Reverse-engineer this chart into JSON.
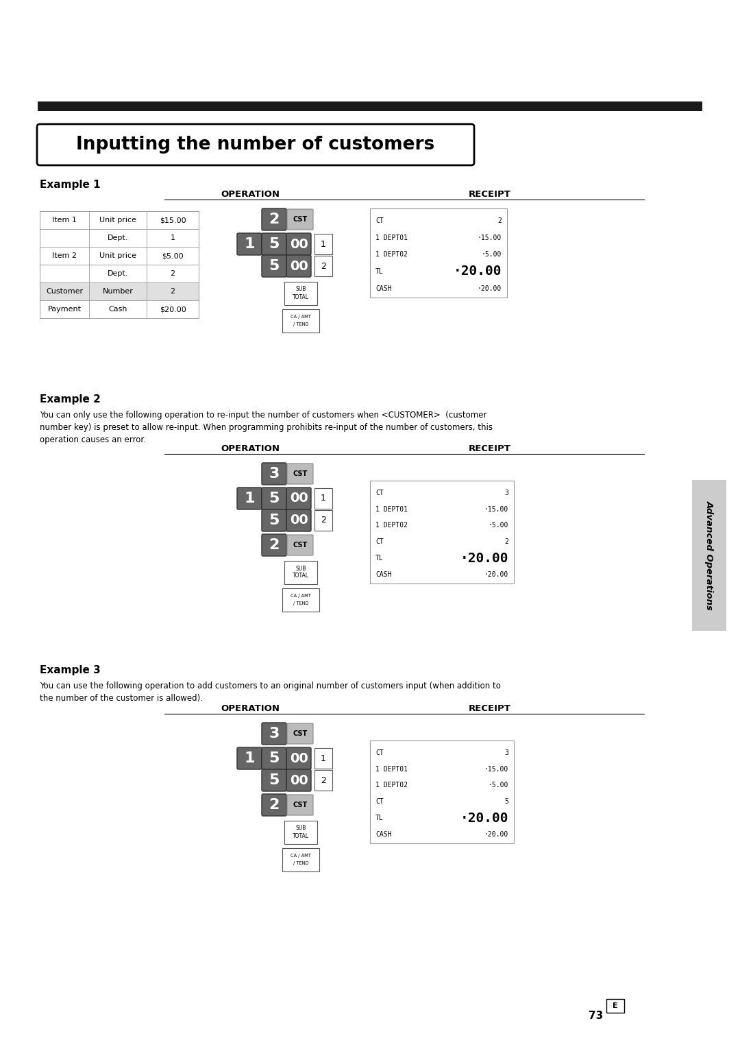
{
  "title": "Inputting the number of customers",
  "page_number": "73",
  "top_bar_color": "#1a1a1a",
  "background_color": "#ffffff",
  "example1_label": "Example 1",
  "example2_label": "Example 2",
  "example3_label": "Example 3",
  "operation_label": "OPERATION",
  "receipt_label": "RECEIPT",
  "example2_text": "You can only use the following operation to re-input the number of customers when <CUSTOMER>  (customer\nnumber key) is preset to allow re-input. When programming prohibits re-input of the number of customers, this\noperation causes an error.",
  "example3_text": "You can use the following operation to add customers to an original number of customers input (when addition to\nthe number of the customer is allowed).",
  "sidebar_text": "Advanced Operations",
  "table1_data": [
    [
      "Item 1",
      "Unit price",
      "$15.00"
    ],
    [
      "",
      "Dept.",
      "1"
    ],
    [
      "Item 2",
      "Unit price",
      "$5.00"
    ],
    [
      "",
      "Dept.",
      "2"
    ],
    [
      "Customer",
      "Number",
      "2"
    ],
    [
      "Payment",
      "Cash",
      "$20.00"
    ]
  ],
  "receipt1_lines": [
    [
      "CT",
      "2"
    ],
    [
      "1 DEPT01",
      "·15.00"
    ],
    [
      "1 DEPT02",
      "·5.00"
    ],
    [
      "TL",
      "·20.00"
    ],
    [
      "CASH",
      "·20.00"
    ]
  ],
  "receipt2_lines": [
    [
      "CT",
      "3"
    ],
    [
      "1 DEPT01",
      "·15.00"
    ],
    [
      "1 DEPT02",
      "·5.00"
    ],
    [
      "CT",
      "2"
    ],
    [
      "TL",
      "·20.00"
    ],
    [
      "CASH",
      "·20.00"
    ]
  ],
  "receipt3_lines": [
    [
      "CT",
      "3"
    ],
    [
      "1 DEPT01",
      "·15.00"
    ],
    [
      "1 DEPT02",
      "·5.00"
    ],
    [
      "CT",
      "5"
    ],
    [
      "TL",
      "·20.00"
    ],
    [
      "CASH",
      "·20.00"
    ]
  ],
  "key_dark_bg": "#666666",
  "key_dark_fg": "#ffffff",
  "key_light_bg": "#ffffff",
  "key_light_fg": "#000000",
  "cst_bg": "#bbbbbb",
  "sidebar_bg": "#cccccc"
}
